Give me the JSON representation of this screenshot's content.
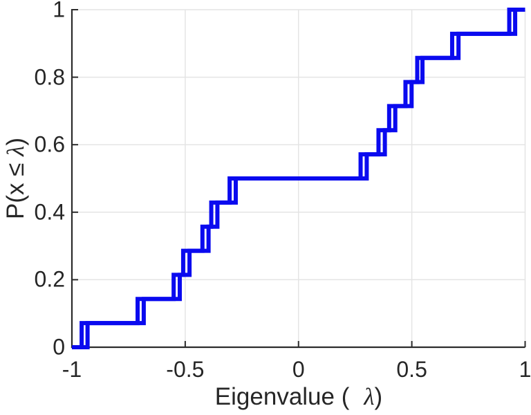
{
  "chart_data": {
    "type": "line",
    "subtype": "empirical-cdf-stairs",
    "title": "",
    "xlabel": "Eigenvalue ( λ)",
    "xlabel_parts": {
      "prefix": "Eigenvalue (",
      "lambda": "λ",
      "suffix": ")"
    },
    "ylabel": "P(x ≤ λ)",
    "ylabel_parts": {
      "prefix": "P(x ≤ ",
      "lambda": "λ",
      "suffix": ")"
    },
    "xlim": [
      -1,
      1
    ],
    "ylim": [
      0,
      1
    ],
    "grid": true,
    "legend": "none",
    "n_points": 14,
    "line_width": 6,
    "x_ticks": [
      {
        "value": -1,
        "label": "-1"
      },
      {
        "value": -0.5,
        "label": "-0.5"
      },
      {
        "value": 0,
        "label": "0"
      },
      {
        "value": 0.5,
        "label": "0.5"
      },
      {
        "value": 1,
        "label": "1"
      }
    ],
    "y_ticks": [
      {
        "value": 0,
        "label": "0"
      },
      {
        "value": 0.2,
        "label": "0.2"
      },
      {
        "value": 0.4,
        "label": "0.4"
      },
      {
        "value": 0.6,
        "label": "0.6"
      },
      {
        "value": 0.8,
        "label": "0.8"
      },
      {
        "value": 1,
        "label": "1"
      }
    ],
    "cdf_levels": [
      0.0714,
      0.1429,
      0.2143,
      0.2857,
      0.3571,
      0.4286,
      0.5,
      0.5714,
      0.6429,
      0.7143,
      0.7857,
      0.8571,
      0.9286,
      1.0
    ],
    "series": [
      {
        "name": "ecdf-curve-1",
        "color": "#0A0AEF",
        "jumps": [
          -0.957,
          -0.71,
          -0.551,
          -0.509,
          -0.424,
          -0.385,
          -0.304,
          0.274,
          0.353,
          0.4,
          0.472,
          0.524,
          0.678,
          0.93
        ]
      },
      {
        "name": "ecdf-curve-2",
        "color": "#0A0AEF",
        "jumps": [
          -0.931,
          -0.683,
          -0.524,
          -0.481,
          -0.397,
          -0.358,
          -0.277,
          0.301,
          0.381,
          0.427,
          0.499,
          0.547,
          0.706,
          0.956
        ]
      }
    ],
    "colors": {
      "line": "#0A0AEF",
      "axis": "#2b2b2b",
      "grid": "#e4e4e4",
      "text": "#262626",
      "background": "#ffffff"
    }
  }
}
